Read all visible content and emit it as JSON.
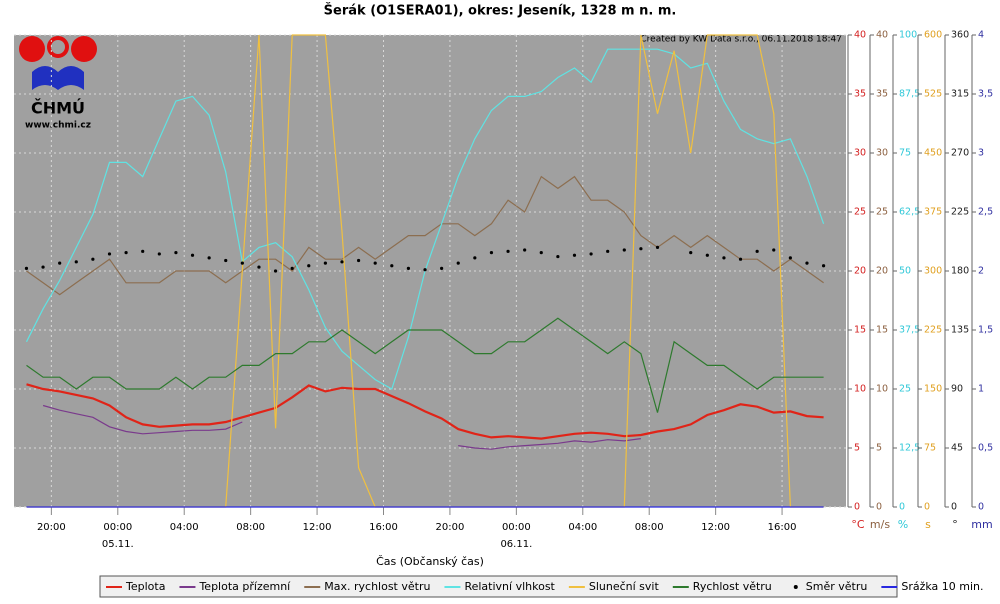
{
  "logo": {
    "name": "ČHMÚ",
    "url": "www.chmi.cz"
  },
  "chart_data": {
    "type": "line",
    "title": "Šerák (O1SERA01), okres: Jeseník, 1328 m n. m.",
    "annotation": "Created by KW Data s.r.o., 06.11.2018 18:47",
    "xlabel": "Čas (Občanský čas)",
    "grid": true,
    "legend": "bottom",
    "xlim": [
      17.75,
      67.85
    ],
    "xticks": [
      {
        "value": 20,
        "label": "20:00"
      },
      {
        "value": 24,
        "label": "00:00"
      },
      {
        "value": 28,
        "label": "04:00"
      },
      {
        "value": 32,
        "label": "08:00"
      },
      {
        "value": 36,
        "label": "12:00"
      },
      {
        "value": 40,
        "label": "16:00"
      },
      {
        "value": 44,
        "label": "20:00"
      },
      {
        "value": 48,
        "label": "00:00"
      },
      {
        "value": 52,
        "label": "04:00"
      },
      {
        "value": 56,
        "label": "08:00"
      },
      {
        "value": 60,
        "label": "12:00"
      },
      {
        "value": 64,
        "label": "16:00"
      }
    ],
    "date_labels": [
      {
        "value": 24,
        "label": "05.11."
      },
      {
        "value": 48,
        "label": "06.11."
      }
    ],
    "axes": [
      {
        "unit": "°C",
        "color": "#d42020",
        "lim": [
          0,
          40
        ],
        "ticks": [
          0,
          5,
          10,
          15,
          20,
          25,
          30,
          35,
          40
        ]
      },
      {
        "unit": "m/s",
        "color": "#8c6040",
        "lim": [
          0,
          40
        ],
        "ticks": [
          0,
          5,
          10,
          15,
          20,
          25,
          30,
          35,
          40
        ]
      },
      {
        "unit": "%",
        "color": "#30c8d8",
        "lim": [
          0,
          100
        ],
        "ticks": [
          0,
          {
            "value": 12.5,
            "label": "12,5"
          },
          25,
          {
            "value": 37.5,
            "label": "37,5"
          },
          50,
          {
            "value": 62.5,
            "label": "62,5"
          },
          75,
          {
            "value": 87.5,
            "label": "87,5"
          },
          100
        ]
      },
      {
        "unit": "s",
        "color": "#e0a020",
        "lim": [
          0,
          600
        ],
        "ticks": [
          0,
          75,
          150,
          225,
          300,
          375,
          450,
          525,
          600
        ]
      },
      {
        "unit": "°",
        "color": "#202020",
        "lim": [
          0,
          360
        ],
        "ticks": [
          0,
          45,
          90,
          135,
          180,
          225,
          270,
          315,
          360
        ]
      },
      {
        "unit": "mm",
        "color": "#3030a0",
        "lim": [
          0,
          4
        ],
        "ticks": [
          0,
          {
            "value": 0.5,
            "label": "0,5"
          },
          1,
          {
            "value": 1.5,
            "label": "1,5"
          },
          2,
          {
            "value": 2.5,
            "label": "2,5"
          },
          3,
          {
            "value": 3.5,
            "label": "3,5"
          },
          4
        ]
      }
    ],
    "x": [
      18.5,
      19.5,
      20.5,
      21.5,
      22.5,
      23.5,
      24.5,
      25.5,
      26.5,
      27.5,
      28.5,
      29.5,
      30.5,
      31.5,
      32.5,
      33.5,
      34.5,
      35.5,
      36.5,
      37.5,
      38.5,
      39.5,
      40.5,
      41.5,
      42.5,
      43.5,
      44.5,
      45.5,
      46.5,
      47.5,
      48.5,
      49.5,
      50.5,
      51.5,
      52.5,
      53.5,
      54.5,
      55.5,
      56.5,
      57.5,
      58.5,
      59.5,
      60.5,
      61.5,
      62.5,
      63.5,
      64.5,
      65.5,
      66.5
    ],
    "series": [
      {
        "name": "Teplota",
        "color": "#e02418",
        "axis": 0,
        "values": [
          10.4,
          10.0,
          9.8,
          9.5,
          9.2,
          8.6,
          7.6,
          7.0,
          6.8,
          6.9,
          7.0,
          7.0,
          7.2,
          7.6,
          8.0,
          8.4,
          9.3,
          10.3,
          9.8,
          10.1,
          10.0,
          10.0,
          9.4,
          8.8,
          8.1,
          7.5,
          6.6,
          6.2,
          5.9,
          6.0,
          5.9,
          5.8,
          6.0,
          6.2,
          6.3,
          6.2,
          6.0,
          6.1,
          6.4,
          6.6,
          7.0,
          7.8,
          8.2,
          8.7,
          8.5,
          8.0,
          8.1,
          7.7,
          7.6
        ]
      },
      {
        "name": "Teplota přízemní",
        "color": "#7a3a8c",
        "axis": 0,
        "values": [
          null,
          8.6,
          8.2,
          7.9,
          7.6,
          6.8,
          6.4,
          6.2,
          6.3,
          6.4,
          6.5,
          6.5,
          6.6,
          7.2,
          null,
          null,
          null,
          null,
          null,
          null,
          null,
          null,
          null,
          null,
          null,
          null,
          5.2,
          5.0,
          4.9,
          5.1,
          5.2,
          5.3,
          5.4,
          5.6,
          5.5,
          5.7,
          5.6,
          5.8,
          null,
          null,
          null,
          null,
          null,
          null,
          null,
          null,
          null,
          null,
          null
        ]
      },
      {
        "name": "Max. rychlost větru",
        "color": "#8c6e50",
        "axis": 1,
        "values": [
          20,
          19,
          18,
          19,
          20,
          21,
          19,
          19,
          19,
          20,
          20,
          20,
          19,
          20,
          21,
          21,
          20,
          22,
          21,
          21,
          22,
          21,
          22,
          23,
          23,
          24,
          24,
          23,
          24,
          26,
          25,
          28,
          27,
          28,
          26,
          26,
          25,
          23,
          22,
          23,
          22,
          23,
          22,
          21,
          21,
          20,
          21,
          20,
          19
        ]
      },
      {
        "name": "Relativní vlhkost",
        "color": "#5fe3e3",
        "axis": 2,
        "values": [
          35,
          42,
          48,
          55,
          62,
          73,
          73,
          70,
          78,
          86,
          87,
          83,
          71,
          52,
          55,
          56,
          53,
          46,
          38,
          33,
          30,
          27,
          25,
          36,
          50,
          60,
          70,
          78,
          84,
          87,
          87,
          88,
          91,
          93,
          90,
          97,
          97,
          97,
          97,
          96,
          93,
          94,
          86,
          80,
          78,
          77,
          78,
          70,
          60
        ]
      },
      {
        "name": "Sluneční svit",
        "color": "#f0c040",
        "axis": 3,
        "values": [
          0,
          0,
          0,
          0,
          0,
          0,
          0,
          0,
          0,
          0,
          0,
          0,
          0,
          300,
          600,
          100,
          600,
          600,
          600,
          350,
          50,
          0,
          0,
          0,
          0,
          0,
          0,
          0,
          0,
          0,
          0,
          0,
          0,
          0,
          0,
          0,
          0,
          600,
          500,
          580,
          450,
          600,
          600,
          600,
          600,
          500,
          0,
          0,
          0
        ]
      },
      {
        "name": "Rychlost větru",
        "color": "#2e7a2e",
        "axis": 1,
        "values": [
          12,
          11,
          11,
          10,
          11,
          11,
          10,
          10,
          10,
          11,
          10,
          11,
          11,
          12,
          12,
          13,
          13,
          14,
          14,
          15,
          14,
          13,
          14,
          15,
          15,
          15,
          14,
          13,
          13,
          14,
          14,
          15,
          16,
          15,
          14,
          13,
          14,
          13,
          8,
          14,
          13,
          12,
          12,
          11,
          10,
          11,
          11,
          11,
          11
        ]
      },
      {
        "name": "Směr větru",
        "color": "#000000",
        "axis": 4,
        "marker": "dot",
        "values": [
          182,
          183,
          186,
          187,
          189,
          193,
          194,
          195,
          193,
          194,
          192,
          190,
          188,
          186,
          183,
          180,
          182,
          184,
          186,
          187,
          188,
          186,
          184,
          182,
          181,
          182,
          186,
          190,
          194,
          195,
          196,
          194,
          191,
          192,
          193,
          195,
          196,
          197,
          198,
          null,
          194,
          192,
          190,
          189,
          195,
          196,
          190,
          186,
          184
        ]
      },
      {
        "name": "Srážka 10 min.",
        "color": "#2828e0",
        "axis": 5,
        "values": [
          0,
          0,
          0,
          0,
          0,
          0,
          0,
          0,
          0,
          0,
          0,
          0,
          0,
          0,
          0,
          0,
          0,
          0,
          0,
          0,
          0,
          0,
          0,
          0,
          0,
          0,
          0,
          0,
          0,
          0,
          0,
          0,
          0,
          0,
          0,
          0,
          0,
          0,
          0,
          0,
          0,
          0,
          0,
          0,
          0,
          0,
          0,
          0,
          0
        ]
      }
    ]
  }
}
